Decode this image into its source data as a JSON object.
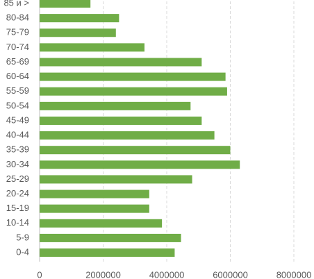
{
  "chart_data": {
    "type": "bar",
    "orientation": "horizontal",
    "categories": [
      "85 и >",
      "80-84",
      "75-79",
      "70-74",
      "65-69",
      "60-64",
      "55-59",
      "50-54",
      "45-49",
      "40-44",
      "35-39",
      "30-34",
      "25-29",
      "20-24",
      "15-19",
      "10-14",
      "5-9",
      "0-4"
    ],
    "values": [
      1600000,
      2500000,
      2400000,
      3300000,
      5100000,
      5850000,
      5900000,
      4750000,
      5100000,
      5500000,
      6000000,
      6300000,
      4800000,
      3450000,
      3450000,
      3850000,
      4450000,
      4250000
    ],
    "color": "#70ad47",
    "xlim": [
      0,
      8000000
    ],
    "xticks": [
      0,
      2000000,
      4000000,
      6000000,
      8000000
    ],
    "grid": true
  }
}
